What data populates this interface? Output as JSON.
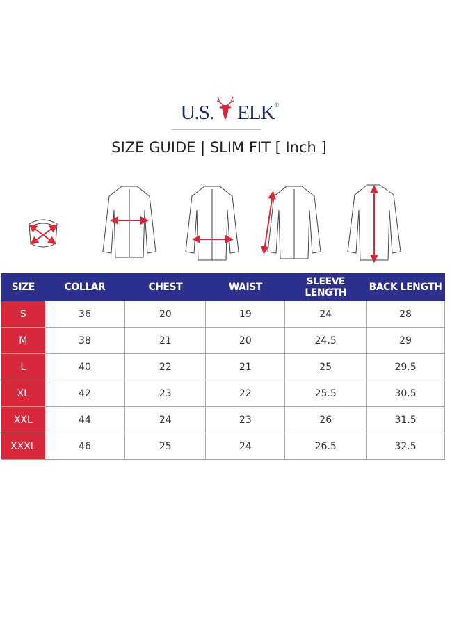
{
  "brand": {
    "logo_text_left": "U.S.",
    "logo_text_right": "ELK",
    "registered": "®",
    "accent": "#d8283c",
    "navy": "#2c2f8c"
  },
  "title": "SIZE GUIDE | SLIM FIT [ Inch ]",
  "illustrations": [
    "collar-measure",
    "chest-measure",
    "waist-measure",
    "sleeve-measure",
    "back-length-measure"
  ],
  "table": {
    "headers": [
      "SIZE",
      "COLLAR",
      "CHEST",
      "WAIST",
      "SLEEVE LENGTH",
      "BACK LENGTH"
    ],
    "rows": [
      [
        "S",
        "36",
        "20",
        "19",
        "24",
        "28"
      ],
      [
        "M",
        "38",
        "21",
        "20",
        "24.5",
        "29"
      ],
      [
        "L",
        "40",
        "22",
        "21",
        "25",
        "29.5"
      ],
      [
        "XL",
        "42",
        "23",
        "22",
        "25.5",
        "30.5"
      ],
      [
        "XXL",
        "44",
        "24",
        "23",
        "26",
        "31.5"
      ],
      [
        "XXXL",
        "46",
        "25",
        "24",
        "26.5",
        "32.5"
      ]
    ]
  }
}
